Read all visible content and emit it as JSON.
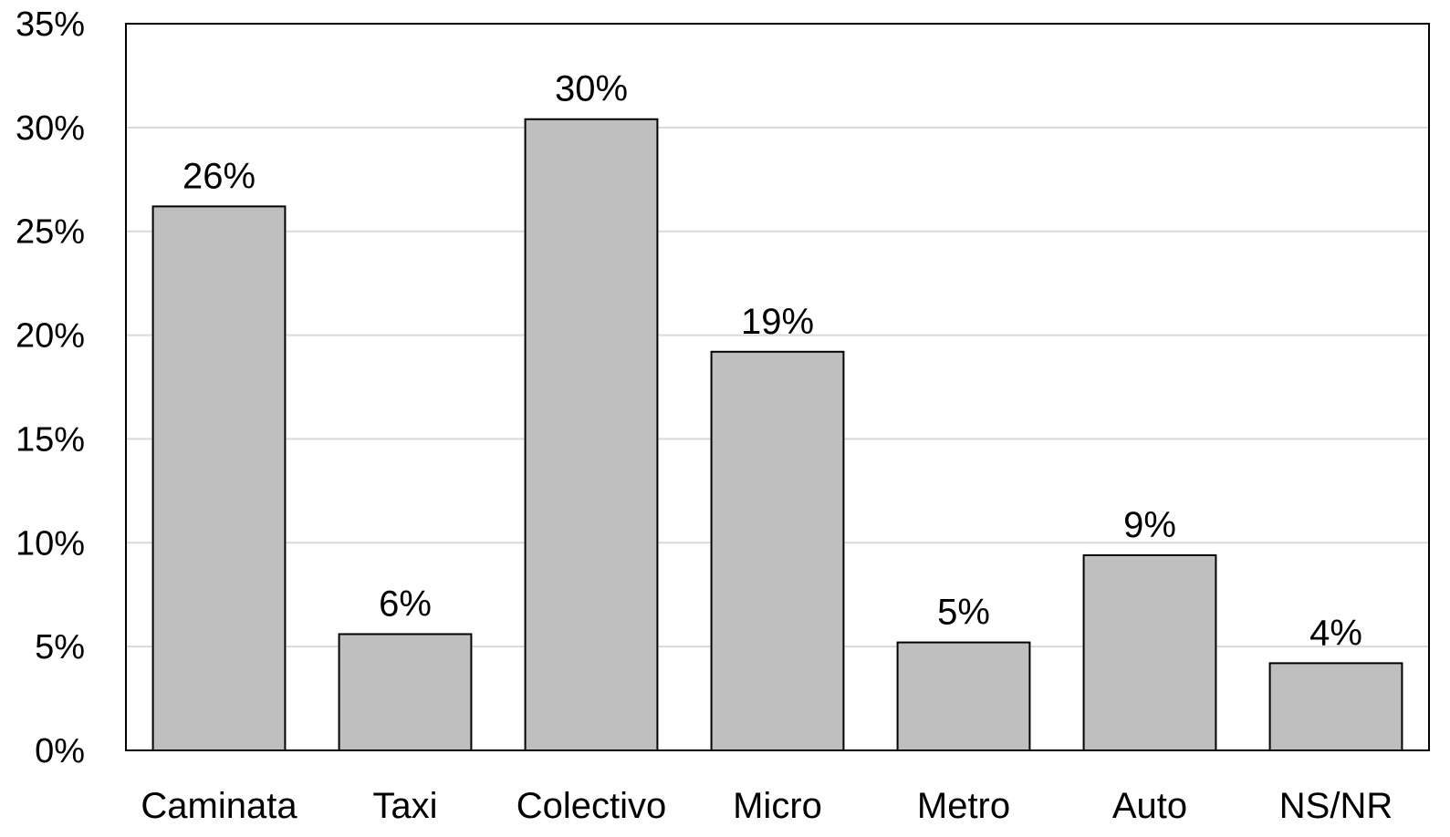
{
  "chart_data": {
    "type": "bar",
    "categories": [
      "Caminata",
      "Taxi",
      "Colectivo",
      "Micro",
      "Metro",
      "Auto",
      "NS/NR"
    ],
    "values": [
      26.2,
      5.6,
      30.4,
      19.2,
      5.2,
      9.4,
      4.2
    ],
    "data_labels": [
      "26%",
      "6%",
      "30%",
      "19%",
      "5%",
      "9%",
      "4%"
    ],
    "ylim": [
      0,
      35
    ],
    "yticks": [
      0,
      5,
      10,
      15,
      20,
      25,
      30,
      35
    ],
    "ytick_labels": [
      "0%",
      "5%",
      "10%",
      "15%",
      "20%",
      "25%",
      "30%",
      "35%"
    ],
    "title": "",
    "xlabel": "",
    "ylabel": "",
    "grid": true,
    "legend": "none",
    "bar_color": "#bfbfbf",
    "bar_edge_color": "#000000",
    "grid_color": "#d9d9d9"
  }
}
